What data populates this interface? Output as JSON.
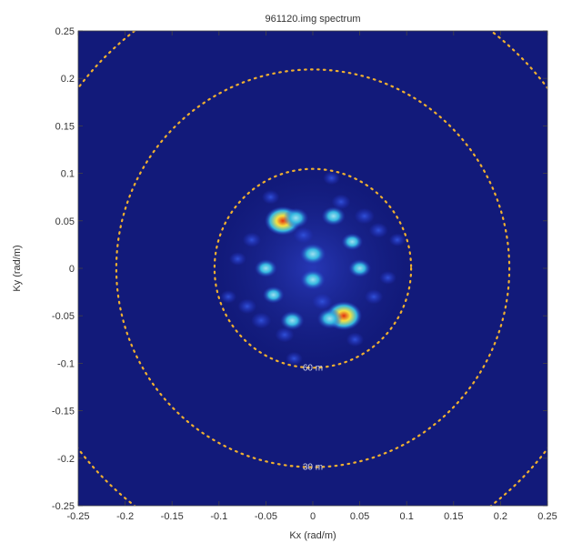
{
  "chart_data": {
    "type": "heatmap",
    "title": "961120.img spectrum",
    "xlabel": "Kx (rad/m)",
    "ylabel": "Ky (rad/m)",
    "xlim": [
      -0.25,
      0.25
    ],
    "ylim": [
      -0.25,
      0.25
    ],
    "xticks": [
      "-0.25",
      "-0.2",
      "-0.15",
      "-0.1",
      "-0.05",
      "0",
      "0.05",
      "0.1",
      "0.15",
      "0.2",
      "0.25"
    ],
    "yticks": [
      "0.25",
      "0.2",
      "0.15",
      "0.1",
      "0.05",
      "0",
      "-0.05",
      "-0.1",
      "-0.15",
      "-0.2",
      "-0.25"
    ],
    "grid": false,
    "colors": {
      "background": "#121a7a",
      "ring": "#f0b030",
      "low": "#2233c8",
      "mid": "#35b8e0",
      "high": "#f6e040",
      "peak": "#e03010"
    },
    "wavelength_rings": [
      {
        "radius": 0.1047,
        "label": "60 m"
      },
      {
        "radius": 0.2094,
        "label": "30 m"
      },
      {
        "radius": 0.314,
        "label": ""
      }
    ],
    "peaks": [
      {
        "kx": -0.032,
        "ky": 0.05,
        "intensity": 1.0
      },
      {
        "kx": 0.033,
        "ky": -0.05,
        "intensity": 1.0
      },
      {
        "kx": -0.018,
        "ky": 0.053,
        "intensity": 0.55
      },
      {
        "kx": 0.018,
        "ky": -0.053,
        "intensity": 0.55
      },
      {
        "kx": 0.0,
        "ky": 0.015,
        "intensity": 0.6
      },
      {
        "kx": 0.0,
        "ky": -0.012,
        "intensity": 0.55
      },
      {
        "kx": 0.022,
        "ky": 0.055,
        "intensity": 0.5
      },
      {
        "kx": -0.022,
        "ky": -0.055,
        "intensity": 0.5
      },
      {
        "kx": 0.05,
        "ky": 0.0,
        "intensity": 0.45
      },
      {
        "kx": -0.05,
        "ky": 0.0,
        "intensity": 0.45
      },
      {
        "kx": 0.055,
        "ky": 0.055,
        "intensity": 0.35
      },
      {
        "kx": -0.055,
        "ky": -0.055,
        "intensity": 0.35
      },
      {
        "kx": 0.042,
        "ky": 0.028,
        "intensity": 0.4
      },
      {
        "kx": -0.042,
        "ky": -0.028,
        "intensity": 0.4
      },
      {
        "kx": -0.01,
        "ky": 0.035,
        "intensity": 0.35
      },
      {
        "kx": 0.01,
        "ky": -0.035,
        "intensity": 0.35
      },
      {
        "kx": 0.07,
        "ky": 0.04,
        "intensity": 0.3
      },
      {
        "kx": -0.07,
        "ky": -0.04,
        "intensity": 0.3
      },
      {
        "kx": -0.065,
        "ky": 0.03,
        "intensity": 0.28
      },
      {
        "kx": 0.065,
        "ky": -0.03,
        "intensity": 0.28
      },
      {
        "kx": 0.03,
        "ky": 0.07,
        "intensity": 0.3
      },
      {
        "kx": -0.03,
        "ky": -0.07,
        "intensity": 0.3
      },
      {
        "kx": -0.045,
        "ky": 0.075,
        "intensity": 0.25
      },
      {
        "kx": 0.045,
        "ky": -0.075,
        "intensity": 0.25
      },
      {
        "kx": 0.08,
        "ky": -0.01,
        "intensity": 0.22
      },
      {
        "kx": -0.08,
        "ky": 0.01,
        "intensity": 0.22
      },
      {
        "kx": 0.02,
        "ky": 0.095,
        "intensity": 0.22
      },
      {
        "kx": -0.02,
        "ky": -0.095,
        "intensity": 0.22
      },
      {
        "kx": 0.09,
        "ky": 0.03,
        "intensity": 0.2
      },
      {
        "kx": -0.09,
        "ky": -0.03,
        "intensity": 0.2
      }
    ]
  }
}
